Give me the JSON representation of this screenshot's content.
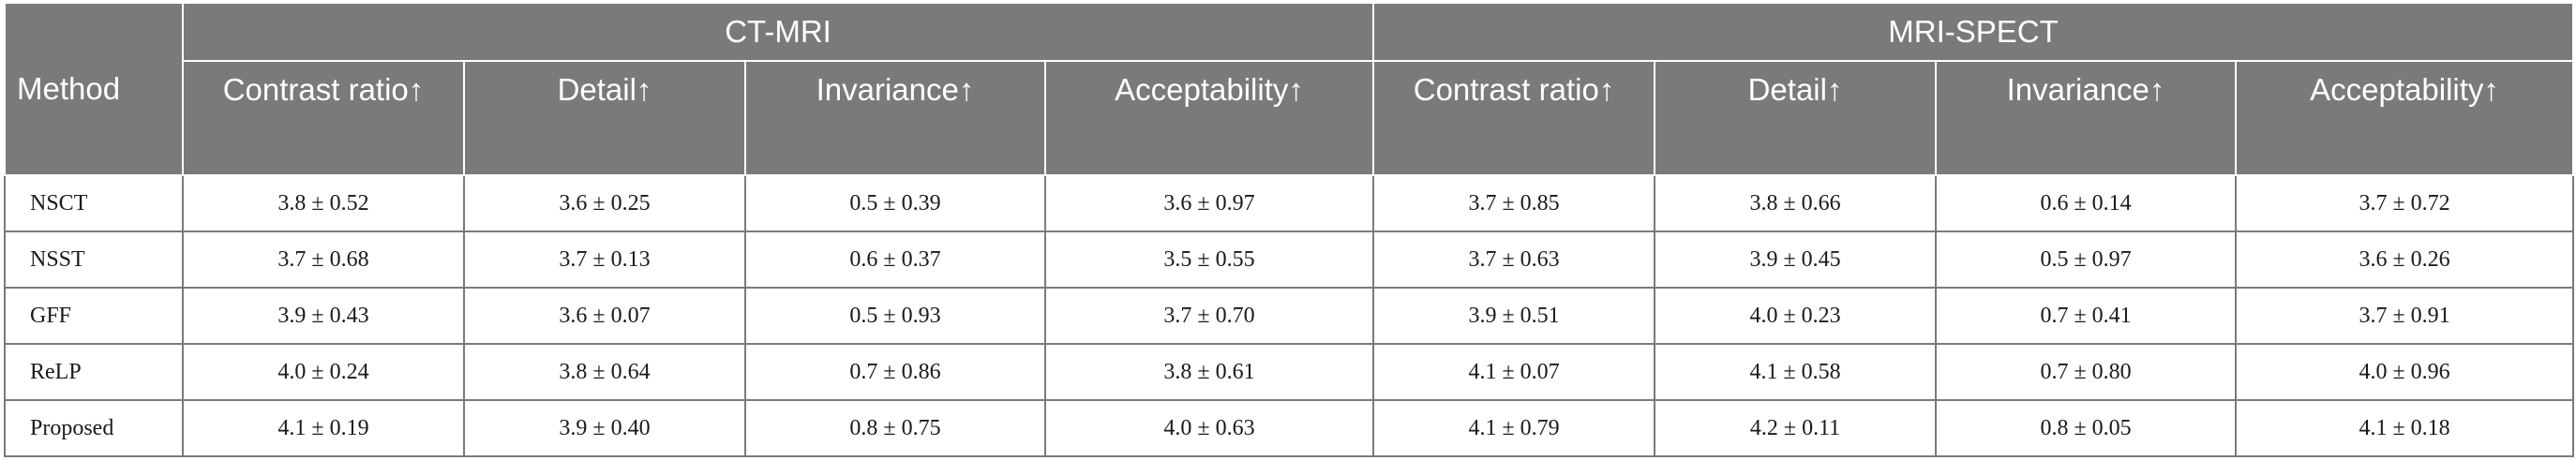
{
  "table": {
    "method_header": "Method",
    "groups": [
      "CT-MRI",
      "MRI-SPECT"
    ],
    "metrics": [
      "Contrast ratio↑",
      "Detail↑",
      "Invariance↑",
      "Acceptability↑"
    ],
    "rows": [
      {
        "method": "NSCT",
        "values": [
          "3.8 ± 0.52",
          "3.6 ± 0.25",
          "0.5 ± 0.39",
          "3.6 ± 0.97",
          "3.7 ± 0.85",
          "3.8 ± 0.66",
          "0.6 ± 0.14",
          "3.7 ± 0.72"
        ]
      },
      {
        "method": "NSST",
        "values": [
          "3.7 ± 0.68",
          "3.7 ± 0.13",
          "0.6 ± 0.37",
          "3.5 ± 0.55",
          "3.7 ± 0.63",
          "3.9 ± 0.45",
          "0.5 ± 0.97",
          "3.6 ± 0.26"
        ]
      },
      {
        "method": "GFF",
        "values": [
          "3.9 ± 0.43",
          "3.6 ± 0.07",
          "0.5 ± 0.93",
          "3.7 ± 0.70",
          "3.9 ± 0.51",
          "4.0 ± 0.23",
          "0.7 ± 0.41",
          "3.7 ± 0.91"
        ]
      },
      {
        "method": "ReLP",
        "values": [
          "4.0 ± 0.24",
          "3.8 ± 0.64",
          "0.7 ± 0.86",
          "3.8 ± 0.61",
          "4.1 ± 0.07",
          "4.1 ± 0.58",
          "0.7 ± 0.80",
          "4.0 ± 0.96"
        ]
      },
      {
        "method": "Proposed",
        "values": [
          "4.1 ± 0.19",
          "3.9 ± 0.40",
          "0.8 ± 0.75",
          "4.0 ± 0.63",
          "4.1 ± 0.79",
          "4.2 ± 0.11",
          "0.8 ± 0.05",
          "4.1 ± 0.18"
        ]
      }
    ]
  },
  "colors": {
    "header_bg": "#7a7a7a",
    "header_text": "#ffffff",
    "border": "#7a7a7a",
    "cell_text": "#1a1a1a"
  }
}
